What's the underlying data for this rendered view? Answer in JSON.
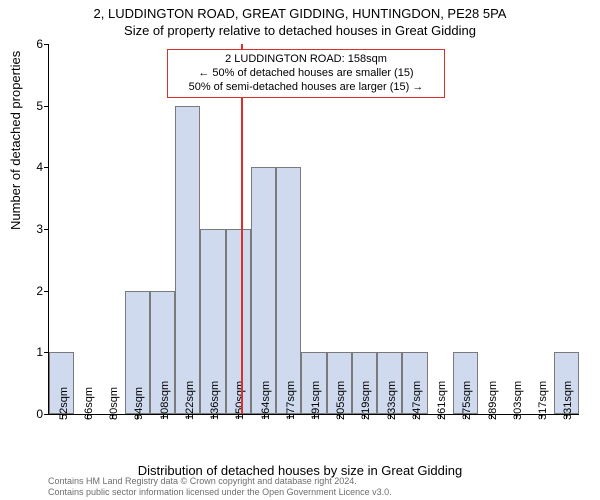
{
  "chart": {
    "type": "histogram",
    "title_main": "2, LUDDINGTON ROAD, GREAT GIDDING, HUNTINGDON, PE28 5PA",
    "title_sub": "Size of property relative to detached houses in Great Gidding",
    "title_fontsize": 13,
    "ylabel": "Number of detached properties",
    "xlabel": "Distribution of detached houses by size in Great Gidding",
    "label_fontsize": 13,
    "background_color": "#ffffff",
    "bar_color": "#cfdaee",
    "bar_border_color": "#7a7a7a",
    "axis_color": "#000000",
    "refline_color": "#d9302c",
    "annotation_border_color": "#d9302c",
    "y": {
      "min": 0,
      "max": 6,
      "ticks": [
        0,
        1,
        2,
        3,
        4,
        5,
        6
      ]
    },
    "x": {
      "tick_labels": [
        "52sqm",
        "66sqm",
        "80sqm",
        "94sqm",
        "108sqm",
        "122sqm",
        "136sqm",
        "150sqm",
        "164sqm",
        "177sqm",
        "191sqm",
        "205sqm",
        "219sqm",
        "233sqm",
        "247sqm",
        "261sqm",
        "275sqm",
        "289sqm",
        "303sqm",
        "317sqm",
        "331sqm"
      ],
      "tick_fontsize": 11
    },
    "bars": [
      1,
      0,
      0,
      2,
      2,
      5,
      3,
      3,
      4,
      4,
      1,
      1,
      1,
      1,
      1,
      0,
      1,
      0,
      0,
      0,
      1
    ],
    "refline_x_index": 7.6,
    "annotation": {
      "line1": "2 LUDDINGTON ROAD: 158sqm",
      "line2": "← 50% of detached houses are smaller (15)",
      "line3": "50% of semi-detached houses are larger (15) →"
    },
    "footer_line1": "Contains HM Land Registry data © Crown copyright and database right 2024.",
    "footer_line2": "Contains public sector information licensed under the Open Government Licence v3.0.",
    "footer_color": "#6e6e6e",
    "footer_fontsize": 9
  }
}
